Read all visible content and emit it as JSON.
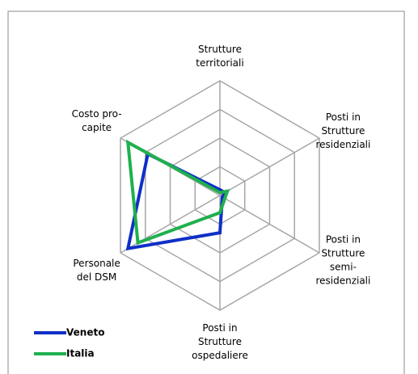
{
  "chart_data": {
    "type": "radar",
    "axes": [
      [
        "Strutture",
        "territoriali"
      ],
      [
        "Posti in",
        "Strutture",
        "residenziali"
      ],
      [
        "Posti in",
        "Strutture",
        "semi-",
        "residenziali"
      ],
      [
        "Posti in",
        "Strutture",
        "ospedaliere"
      ],
      [
        "Personale",
        "del DSM"
      ],
      [
        "Costo pro-",
        "capite"
      ]
    ],
    "series": [
      {
        "name": "Veneto",
        "color": "#0f2fc7",
        "values": [
          0.2,
          0.2,
          0.1,
          1.3,
          3.7,
          2.9
        ]
      },
      {
        "name": "Italia",
        "color": "#1fb04d",
        "values": [
          0.1,
          0.3,
          0.2,
          0.6,
          3.3,
          3.7
        ]
      }
    ],
    "rlim": [
      0,
      4
    ],
    "rticks": [
      1,
      2,
      3,
      4
    ],
    "grid": true,
    "legend": "lower left"
  }
}
